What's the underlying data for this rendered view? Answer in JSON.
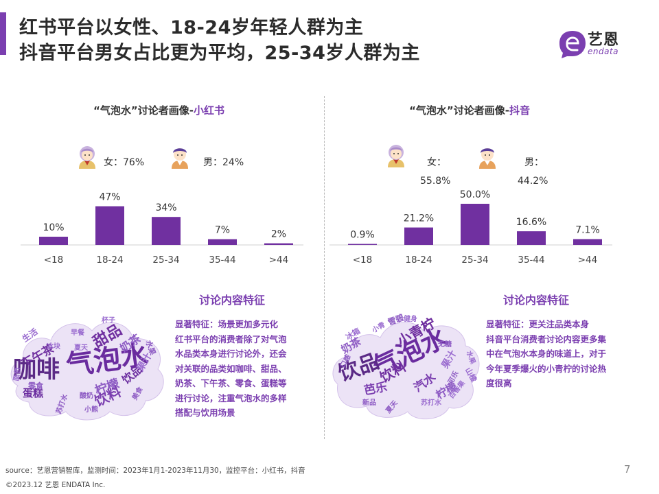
{
  "colors": {
    "accent": "#7b3fb0",
    "bar": "#7030a0",
    "axis": "#d9d9d9",
    "text": "#333333"
  },
  "header": {
    "title_line1": "红书平台以女性、18-24岁年轻人群为主",
    "title_line2": "抖音平台男女占比更为平均，25-34岁人群为主"
  },
  "logo": {
    "cn": "艺恩",
    "en": "endata"
  },
  "panels": {
    "left": {
      "title_prefix": "“气泡水”讨论者画像-",
      "title_platform": "小红书",
      "female_label": "女：76%",
      "male_label": "男：24%",
      "section_title": "讨论内容特征",
      "desc_lines": [
        "显著特征：场景更加多元化",
        "红书平台的消费者除了对气泡",
        "水品类本身进行讨论外，还会",
        "对关联的品类如咖啡、甜品、",
        "奶茶、下午茶、零食、蛋糕等",
        "进行讨论，注重气泡水的多样",
        "搭配与饮用场景"
      ],
      "wordcloud": [
        "气泡水",
        "咖啡",
        "甜品",
        "奶茶",
        "下午茶",
        "柠檬",
        "饮料",
        "饮品",
        "果汁",
        "蛋糕",
        "零食",
        "生活",
        "水果",
        "杯子",
        "小熊",
        "面包",
        "苏打水",
        "早餐",
        "酸奶",
        "夏天",
        "美食",
        "冰块"
      ]
    },
    "right": {
      "title_prefix": "“气泡水”讨论者画像-",
      "title_platform": "抖音",
      "female_label": "女：",
      "female_value": "55.8%",
      "male_label": "男：",
      "male_value": "44.2%",
      "section_title": "讨论内容特征",
      "desc_lines": [
        "显著特征：更关注品类本身",
        "抖音平台消费者讨论内容更多集",
        "中在气泡水本身的味道上，对于",
        "今年夏季爆火的小青柠的讨论热",
        "度很高"
      ],
      "wordcloud": [
        "气泡水",
        "饮品",
        "小青柠",
        "芭乐",
        "饮料",
        "汽水",
        "柠檬",
        "奶茶",
        "果汁",
        "雪碧",
        "冰箱",
        "健身",
        "可乐",
        "山楂",
        "夏天",
        "苏打水",
        "口感",
        "小青",
        "无糖",
        "百香果",
        "新品",
        "水果"
      ]
    }
  },
  "chart_data": [
    {
      "type": "bar",
      "title": "“气泡水”讨论者画像-小红书",
      "categories": [
        "<18",
        "18-24",
        "25-34",
        "35-44",
        ">44"
      ],
      "values": [
        10,
        47,
        34,
        7,
        2
      ],
      "value_labels": [
        "10%",
        "47%",
        "34%",
        "7%",
        "2%"
      ],
      "unit": "%",
      "gender": {
        "female": 76,
        "male": 24
      },
      "ylim": [
        0,
        50
      ],
      "grid": false,
      "legend": "none"
    },
    {
      "type": "bar",
      "title": "“气泡水”讨论者画像-抖音",
      "categories": [
        "<18",
        "18-24",
        "25-34",
        "35-44",
        ">44"
      ],
      "values": [
        0.9,
        21.2,
        50.0,
        16.6,
        7.1
      ],
      "value_labels": [
        "0.9%",
        "21.2%",
        "50.0%",
        "16.6%",
        "7.1%"
      ],
      "unit": "%",
      "gender": {
        "female": 55.8,
        "male": 44.2
      },
      "ylim": [
        0,
        50
      ],
      "grid": false,
      "legend": "none"
    }
  ],
  "footer": {
    "source": "source：艺恩营销智库，监测时间：2023年1月1-2023年11月30，监控平台：小红书，抖音",
    "copyright": "©2023.12 艺恩 ENDATA Inc.",
    "page": "7"
  }
}
